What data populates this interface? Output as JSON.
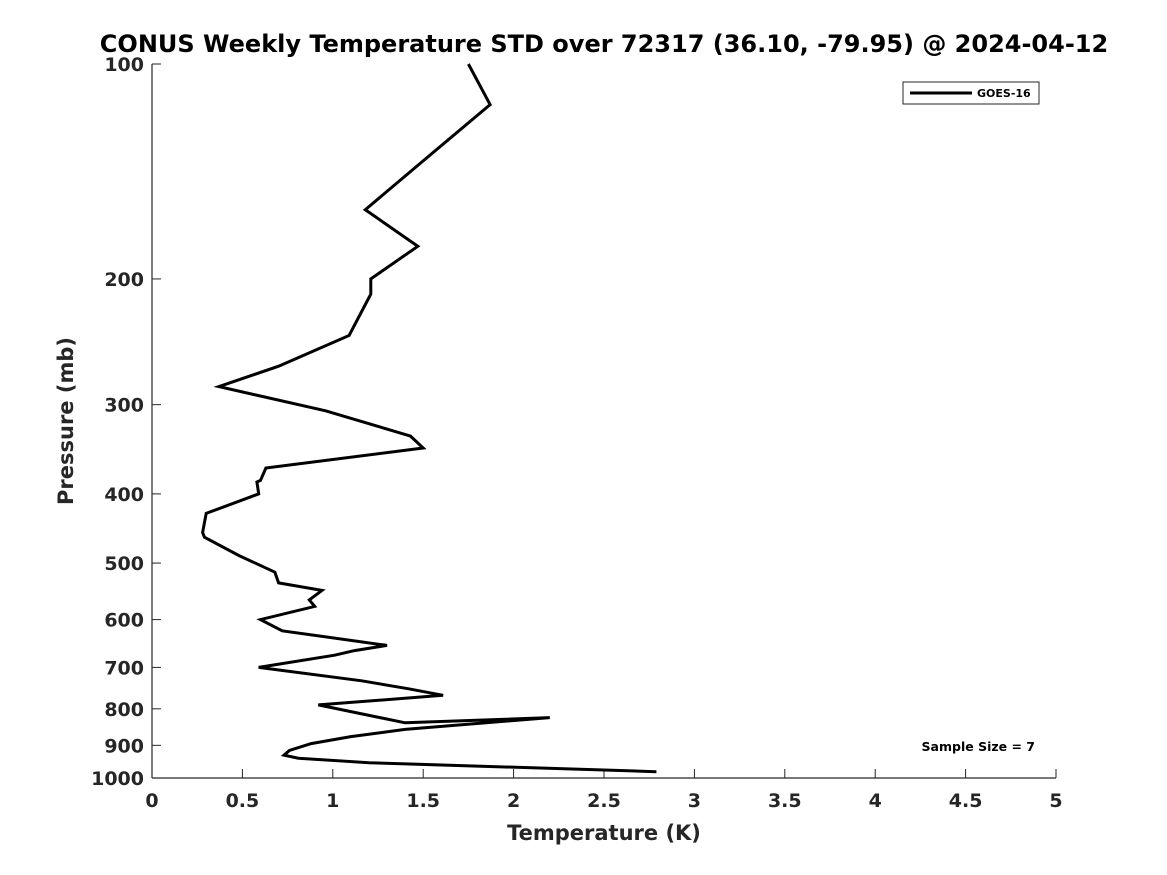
{
  "chart_data": {
    "type": "line",
    "title": "CONUS Weekly Temperature STD over 72317 (36.10, -79.95) @ 2024-04-12",
    "xlabel": "Temperature (K)",
    "ylabel": "Pressure (mb)",
    "xlim": [
      0,
      5
    ],
    "ylim": [
      100,
      1000
    ],
    "yscale": "log",
    "y_reversed": true,
    "grid": false,
    "legend_position": "top-right",
    "x_ticks": [
      0,
      0.5,
      1,
      1.5,
      2,
      2.5,
      3,
      3.5,
      4,
      4.5,
      5
    ],
    "x_tick_labels": [
      "0",
      "0.5",
      "1",
      "1.5",
      "2",
      "2.5",
      "3",
      "3.5",
      "4",
      "4.5",
      "5"
    ],
    "y_ticks": [
      100,
      200,
      300,
      400,
      500,
      600,
      700,
      800,
      900,
      1000
    ],
    "y_tick_labels": [
      "100",
      "200",
      "300",
      "400",
      "500",
      "600",
      "700",
      "800",
      "900",
      "1000"
    ],
    "series": [
      {
        "name": "GOES-16",
        "color": "#000000",
        "x": [
          1.75,
          1.87,
          1.48,
          1.18,
          1.47,
          1.21,
          1.21,
          1.09,
          0.7,
          0.37,
          0.96,
          1.43,
          1.5,
          0.63,
          0.6,
          0.58,
          0.59,
          0.3,
          0.28,
          0.29,
          0.48,
          0.68,
          0.7,
          0.94,
          0.87,
          0.9,
          0.6,
          0.72,
          1.3,
          1.12,
          1.01,
          0.59,
          1.16,
          1.42,
          1.61,
          0.92,
          1.4,
          2.2,
          1.4,
          1.1,
          0.88,
          0.76,
          0.73,
          0.81,
          1.2,
          2.79
        ],
        "y": [
          100,
          114,
          138,
          160,
          180,
          200,
          210,
          240,
          265,
          283,
          306,
          332,
          345,
          368,
          383,
          385,
          400,
          426,
          453,
          460,
          488,
          515,
          533,
          546,
          563,
          575,
          600,
          622,
          652,
          663,
          673,
          700,
          731,
          750,
          766,
          790,
          837,
          823,
          855,
          875,
          895,
          915,
          929,
          938,
          952,
          980
        ]
      }
    ],
    "annotations": [
      {
        "text": "Sample Size = 7"
      }
    ]
  }
}
